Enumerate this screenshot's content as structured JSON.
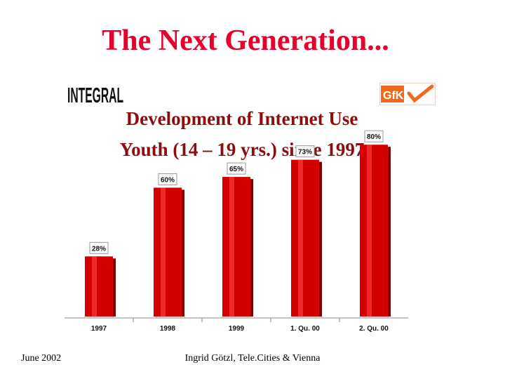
{
  "slide": {
    "title": "The Next Generation...",
    "subtitle_line1": "Development of Internet Use",
    "subtitle_line2": "Youth (14 – 19 yrs.) since 1997",
    "footer_left": "June 2002",
    "footer_center": "Ingrid Götzl, Tele.Cities & Vienna",
    "logo_left_text": "INTEGRAL",
    "logo_right_text": "GfK"
  },
  "chart_data": {
    "type": "bar",
    "categories": [
      "1997",
      "1998",
      "1999",
      "1. Qu. 00",
      "2. Qu. 00"
    ],
    "values": [
      28,
      60,
      65,
      73,
      80
    ],
    "data_labels": [
      "28%",
      "60%",
      "65%",
      "73%",
      "80%"
    ],
    "ylim": [
      0,
      100
    ],
    "grid": false,
    "colors": {
      "bar": "#d40000",
      "bar_dark": "#7a0000"
    }
  }
}
